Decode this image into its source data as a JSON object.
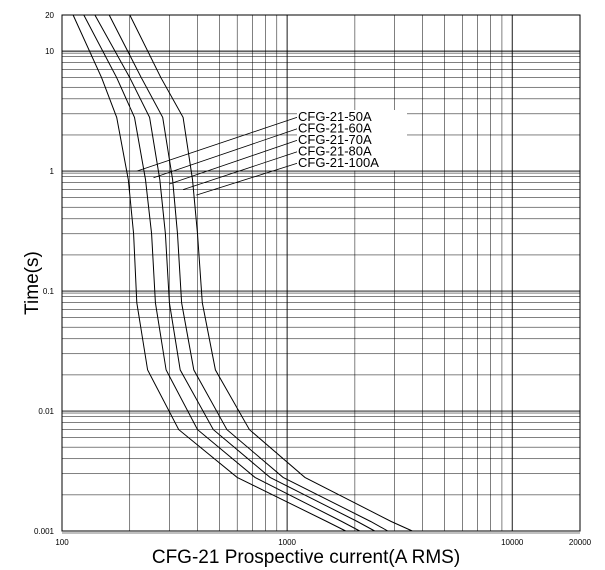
{
  "chart_data": {
    "type": "line",
    "title": "",
    "xlabel": "CFG-21 Prospective current(A RMS)",
    "ylabel": "Time(s)",
    "x_scale": "log",
    "y_scale": "log",
    "xlim": [
      100,
      20000
    ],
    "ylim": [
      0.001,
      20
    ],
    "grid": true,
    "x_tick_labels": [
      {
        "value": 100,
        "label": "100"
      },
      {
        "value": 1000,
        "label": "1000"
      },
      {
        "value": 10000,
        "label": "10000"
      },
      {
        "value": 20000,
        "label": "20000"
      }
    ],
    "y_tick_labels": [
      {
        "value": 0.001,
        "label": "0.001"
      },
      {
        "value": 0.01,
        "label": "0.01"
      },
      {
        "value": 0.1,
        "label": "0.1"
      },
      {
        "value": 1,
        "label": "1"
      },
      {
        "value": 10,
        "label": "10"
      },
      {
        "value": 20,
        "label": "20"
      }
    ],
    "legend_placement": "callouts, upper center",
    "series": [
      {
        "name": "CFG-21-50A",
        "points": [
          [
            112,
            20
          ],
          [
            150,
            6.0
          ],
          [
            175,
            2.8
          ],
          [
            197,
            0.85
          ],
          [
            208,
            0.3
          ],
          [
            215,
            0.08
          ],
          [
            240,
            0.022
          ],
          [
            330,
            0.007
          ],
          [
            600,
            0.0028
          ],
          [
            1500,
            0.0012
          ],
          [
            1820,
            0.001
          ]
        ]
      },
      {
        "name": "CFG-21-60A",
        "points": [
          [
            125,
            20
          ],
          [
            175,
            6.0
          ],
          [
            210,
            2.8
          ],
          [
            235,
            0.85
          ],
          [
            250,
            0.3
          ],
          [
            260,
            0.08
          ],
          [
            290,
            0.022
          ],
          [
            400,
            0.007
          ],
          [
            720,
            0.0028
          ],
          [
            1750,
            0.0012
          ],
          [
            2100,
            0.001
          ]
        ]
      },
      {
        "name": "CFG-21-70A",
        "points": [
          [
            140,
            20
          ],
          [
            200,
            6.0
          ],
          [
            245,
            2.8
          ],
          [
            272,
            0.85
          ],
          [
            288,
            0.3
          ],
          [
            300,
            0.08
          ],
          [
            335,
            0.022
          ],
          [
            470,
            0.007
          ],
          [
            840,
            0.0028
          ],
          [
            2050,
            0.0012
          ],
          [
            2450,
            0.001
          ]
        ]
      },
      {
        "name": "CFG-21-80A",
        "points": [
          [
            162,
            20
          ],
          [
            225,
            6.0
          ],
          [
            280,
            2.8
          ],
          [
            310,
            0.85
          ],
          [
            326,
            0.3
          ],
          [
            340,
            0.08
          ],
          [
            385,
            0.022
          ],
          [
            540,
            0.007
          ],
          [
            960,
            0.0028
          ],
          [
            2350,
            0.0012
          ],
          [
            2800,
            0.001
          ]
        ]
      },
      {
        "name": "CFG-21-100A",
        "points": [
          [
            200,
            20
          ],
          [
            275,
            6.0
          ],
          [
            345,
            2.8
          ],
          [
            380,
            0.85
          ],
          [
            400,
            0.3
          ],
          [
            420,
            0.08
          ],
          [
            480,
            0.022
          ],
          [
            680,
            0.007
          ],
          [
            1200,
            0.0028
          ],
          [
            2900,
            0.0012
          ],
          [
            3600,
            0.001
          ]
        ]
      }
    ],
    "callouts": [
      {
        "series": "CFG-21-50A",
        "from": [
          215,
          1.0
        ]
      },
      {
        "series": "CFG-21-60A",
        "from": [
          255,
          0.88
        ]
      },
      {
        "series": "CFG-21-70A",
        "from": [
          300,
          0.78
        ]
      },
      {
        "series": "CFG-21-80A",
        "from": [
          345,
          0.7
        ]
      },
      {
        "series": "CFG-21-100A",
        "from": [
          395,
          0.63
        ]
      }
    ]
  }
}
